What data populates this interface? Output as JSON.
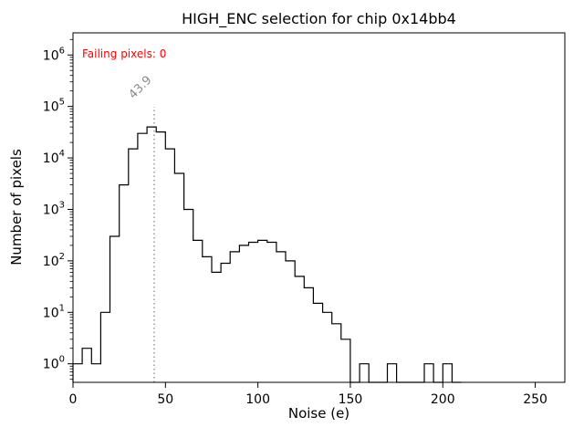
{
  "chart_data": {
    "type": "histogram-step",
    "title": "HIGH_ENC selection for chip 0x14bb4",
    "xlabel": "Noise (e)",
    "ylabel": "Number of pixels",
    "annotation": {
      "text": "Failing pixels: 0",
      "color": "#ff0000"
    },
    "vline": {
      "x": 43.9,
      "label": "43.9",
      "color": "#8a8a8a",
      "style": "dotted"
    },
    "line_color": "#000000",
    "x_ticks": [
      0,
      50,
      100,
      150,
      200,
      250
    ],
    "y_ticks_exponents": [
      0,
      1,
      2,
      3,
      4,
      5,
      6
    ],
    "xlim": [
      0,
      266
    ],
    "ylim_log": [
      -0.36,
      6.43
    ],
    "y_scale": "log",
    "bin_start": 0,
    "bin_width": 5,
    "counts": [
      1,
      2,
      1,
      10,
      300,
      3000,
      15000,
      30000,
      40000,
      32000,
      15000,
      5000,
      1000,
      250,
      120,
      60,
      90,
      150,
      200,
      230,
      250,
      230,
      150,
      100,
      50,
      30,
      15,
      10,
      6,
      3,
      0,
      1,
      0,
      0,
      1,
      0,
      0,
      0,
      1,
      0,
      1,
      0
    ]
  }
}
